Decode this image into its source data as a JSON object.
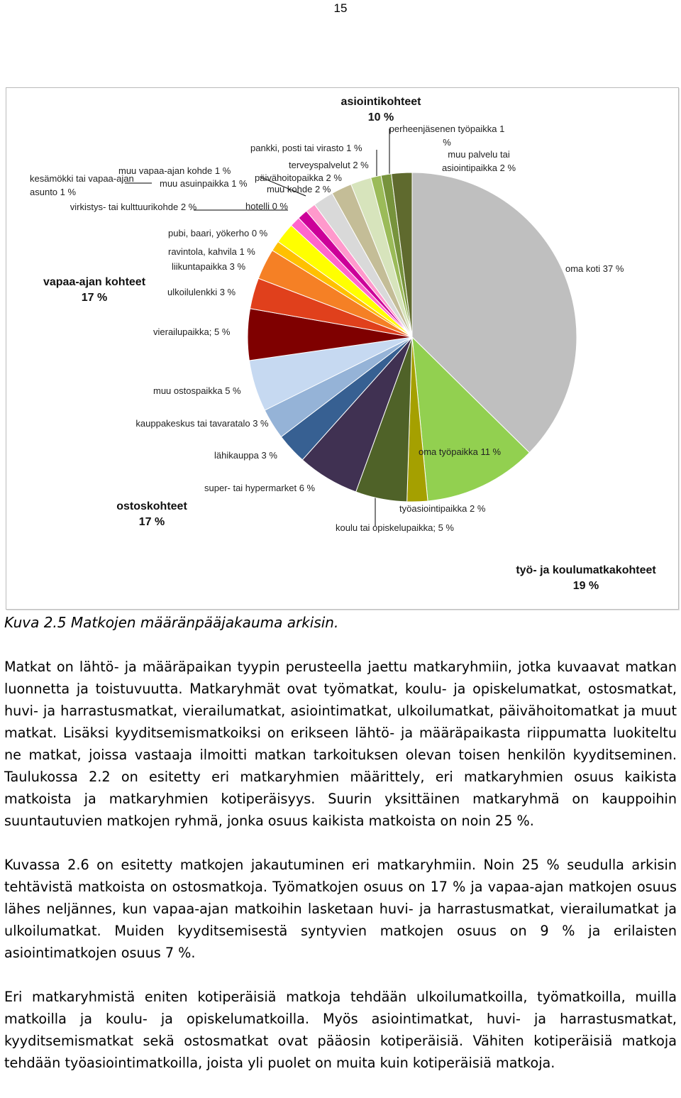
{
  "page_number": "15",
  "chart_data": {
    "type": "pie",
    "categories": [
      "oma koti",
      "oma työpaikka",
      "työasiointipaikka",
      "koulu tai opiskelupaikka;",
      "super- tai hypermarket",
      "lähikauppa",
      "kauppakeskus tai tavaratalo",
      "muu ostospaikka",
      "vierailupaikka;",
      "ulkoilulenkki",
      "liikuntapaikka",
      "ravintola, kahvila",
      "pubi, baari, yökerho",
      "virkistys- tai kulttuurikohde",
      "kesämökki tai vapaa-ajan asunto",
      "muu vapaa-ajan kohde",
      "muu asuinpaikka",
      "hotelli",
      "muu kohde",
      "päivähoitopaikka",
      "terveyspalvelut",
      "pankki, posti tai virasto",
      "perheenjäsenen työpaikka",
      "muu palvelu tai asiointipaikka"
    ],
    "values": [
      37,
      11,
      2,
      5,
      6,
      3,
      3,
      5,
      5,
      3,
      3,
      1,
      0,
      2,
      1,
      1,
      1,
      0,
      2,
      2,
      2,
      1,
      1,
      2
    ],
    "value_labels": [
      "37 %",
      "11 %",
      "2 %",
      "5 %",
      "6 %",
      "3 %",
      "3 %",
      "5 %",
      "5 %",
      "3 %",
      "3 %",
      "1 %",
      "0 %",
      "2 %",
      "1 %",
      "1 %",
      "1 %",
      "0 %",
      "2 %",
      "2 %",
      "2 %",
      "1 %",
      "1 %",
      "2 %"
    ],
    "colors": [
      "#bfbfbf",
      "#92d050",
      "#a5a000",
      "#4f6228",
      "#403152",
      "#376092",
      "#95b3d7",
      "#c6d9f1",
      "#7f0000",
      "#e0401c",
      "#f58025",
      "#ffc000",
      "#ffe600",
      "#ffff00",
      "#ff66cc",
      "#cc0099",
      "#ff99cc",
      "#f0a0d0",
      "#d9d9d9",
      "#c4bd97",
      "#d7e4bc",
      "#9bbb59",
      "#77933c",
      "#5f6a2e"
    ],
    "groups": [
      {
        "name": "asiointikohteet",
        "value": 10,
        "value_label": "10 %"
      },
      {
        "name": "vapaa-ajan kohteet",
        "value": 17,
        "value_label": "17 %"
      },
      {
        "name": "ostoskohteet",
        "value": 17,
        "value_label": "17 %"
      },
      {
        "name": "työ- ja koulumatkakohteet",
        "value": 19,
        "value_label": "19 %"
      }
    ]
  },
  "caption": "Kuva 2.5 Matkojen määränpääjakauma arkisin.",
  "paragraphs": [
    "Matkat on lähtö- ja määräpaikan tyypin perusteella jaettu matkaryhmiin, jotka kuvaavat matkan luonnetta ja toistuvuutta. Matkaryhmät ovat työmatkat, koulu- ja opiskelumatkat, ostosmatkat, huvi- ja harrastusmatkat, vierailumatkat, asiointimatkat, ulkoilumatkat, päivähoitomatkat ja muut matkat. Lisäksi kyyditsemismatkoiksi on erikseen lähtö- ja määräpaikasta riippumatta luokiteltu ne matkat, joissa vastaaja ilmoitti matkan tarkoituksen olevan toisen henkilön kyyditseminen. Taulukossa 2.2 on esitetty eri matkaryhmien määrittely, eri matkaryhmien osuus kaikista matkoista ja matkaryhmien kotiperäisyys. Suurin yksittäinen matkaryhmä on kauppoihin suuntautuvien matkojen ryhmä, jonka osuus kaikista matkoista on noin 25 %.",
    "Kuvassa 2.6 on esitetty matkojen jakautuminen eri matkaryhmiin. Noin 25 % seudulla arkisin tehtävistä matkoista on ostosmatkoja. Työmatkojen osuus on 17 % ja vapaa-ajan matkojen osuus lähes neljännes, kun vapaa-ajan matkoihin lasketaan huvi- ja harrastusmatkat, vierailumatkat ja ulkoilumatkat. Muiden kyyditsemisestä syntyvien matkojen osuus on 9 % ja erilaisten asiointimatkojen osuus 7 %.",
    "Eri matkaryhmistä eniten kotiperäisiä matkoja tehdään ulkoilumatkoilla, työmatkoilla, muilla matkoilla ja koulu- ja opiskelumatkoilla. Myös asiointimatkat, huvi- ja harrastusmatkat, kyyditsemismatkat sekä ostosmatkat ovat pääosin kotiperäisiä. Vähiten kotiperäisiä matkoja tehdään työasiointimatkoilla, joista yli puolet on muita kuin kotiperäisiä matkoja."
  ]
}
